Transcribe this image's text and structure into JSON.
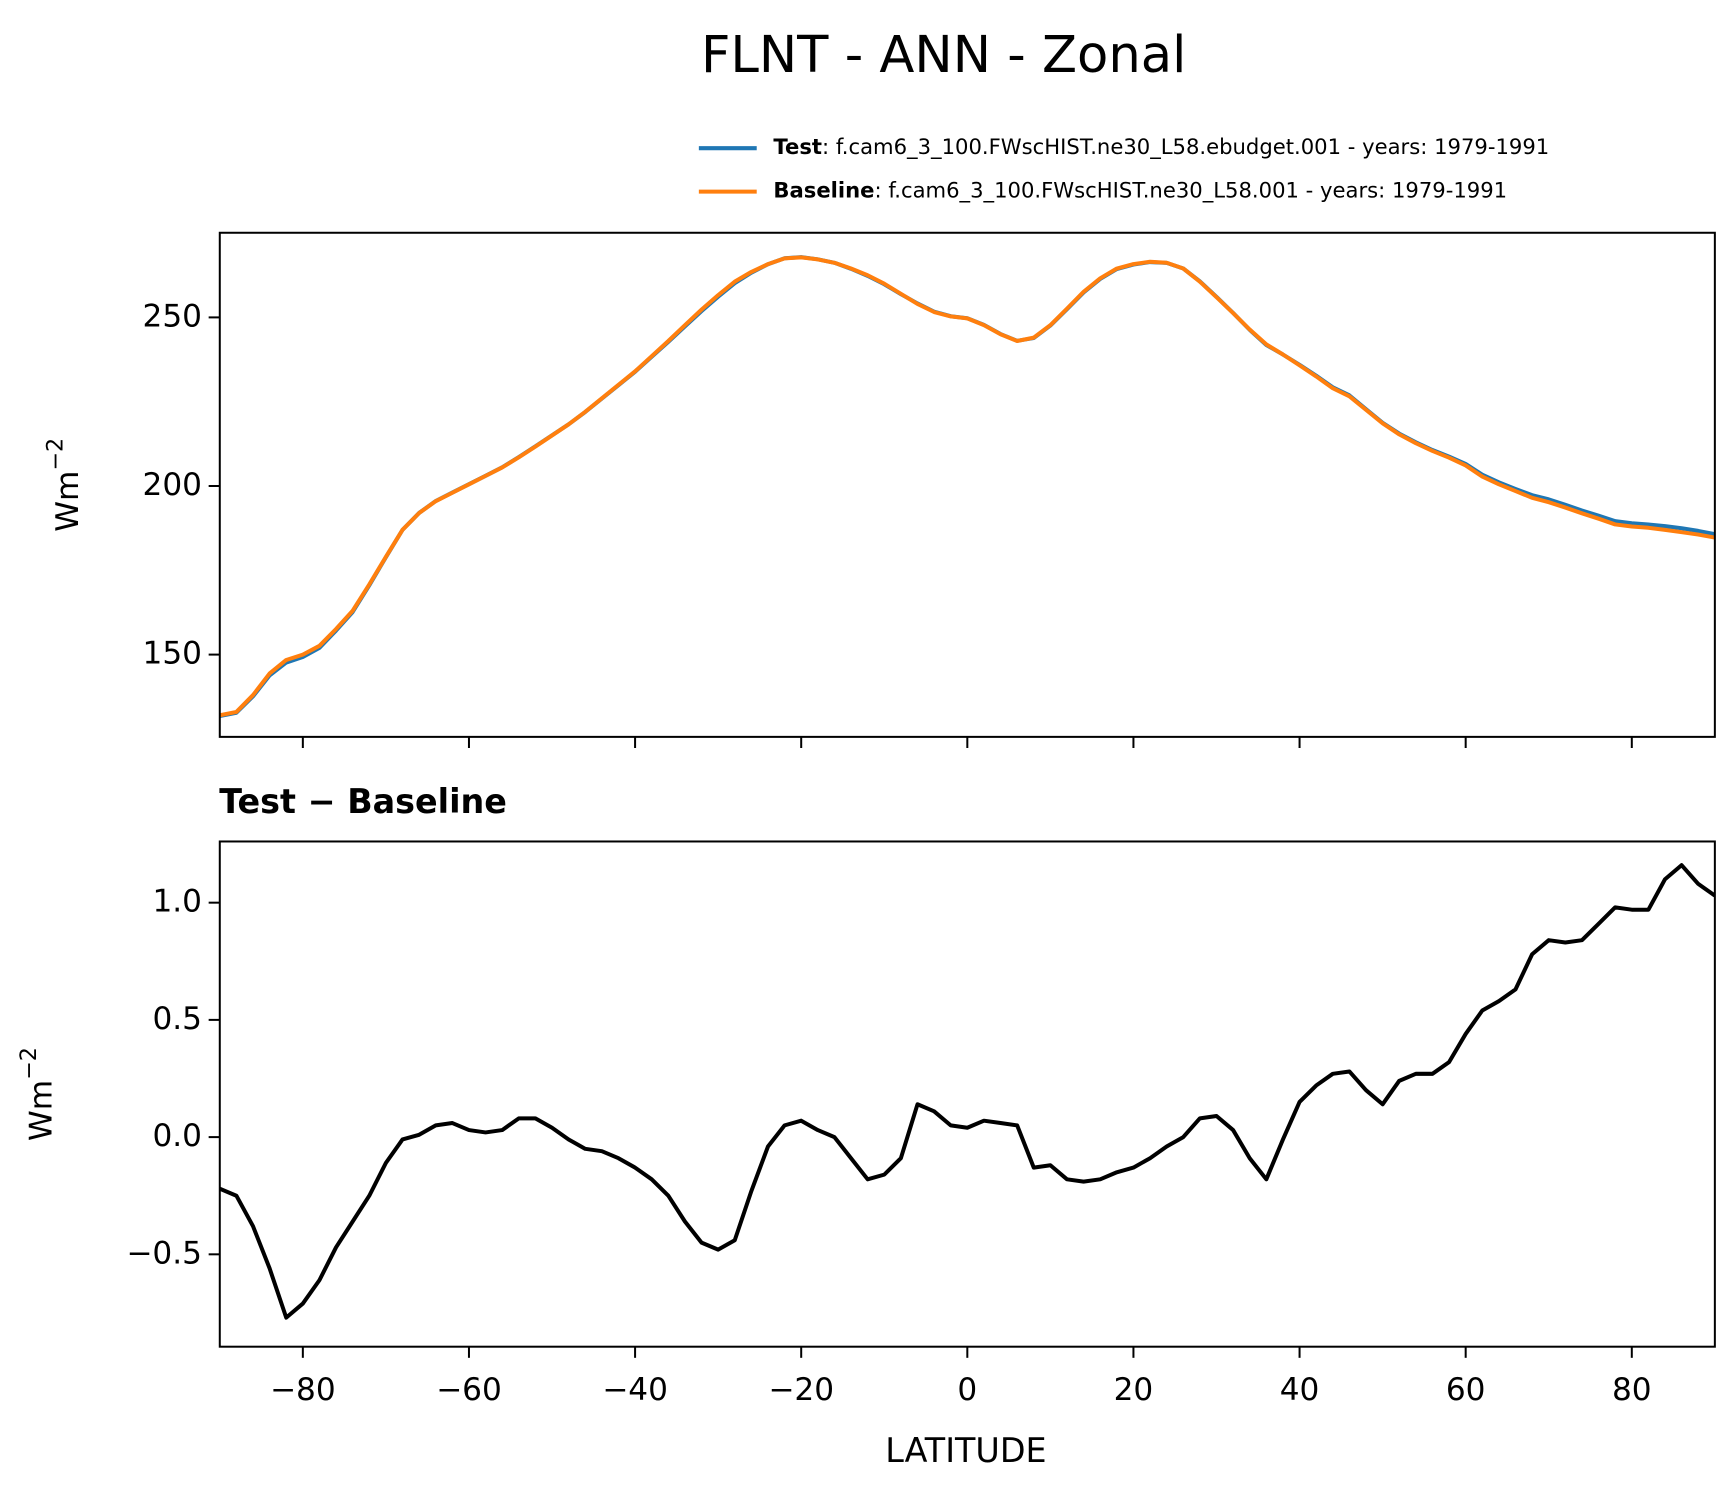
{
  "chart_data": [
    {
      "type": "line",
      "title": "FLNT - ANN - Zonal",
      "ylabel": {
        "base": "Wm",
        "sup": "−2"
      },
      "x": [
        -90,
        -88,
        -86,
        -84,
        -82,
        -80,
        -78,
        -76,
        -74,
        -72,
        -70,
        -68,
        -66,
        -64,
        -62,
        -60,
        -58,
        -56,
        -54,
        -52,
        -50,
        -48,
        -46,
        -44,
        -42,
        -40,
        -38,
        -36,
        -34,
        -32,
        -30,
        -28,
        -26,
        -24,
        -22,
        -20,
        -18,
        -16,
        -14,
        -12,
        -10,
        -8,
        -6,
        -4,
        -2,
        0,
        2,
        4,
        6,
        8,
        10,
        12,
        14,
        16,
        18,
        20,
        22,
        24,
        26,
        28,
        30,
        32,
        34,
        36,
        38,
        40,
        42,
        44,
        46,
        48,
        50,
        52,
        54,
        56,
        58,
        60,
        62,
        64,
        66,
        68,
        70,
        72,
        74,
        76,
        78,
        80,
        82,
        84,
        86,
        88,
        90
      ],
      "series": [
        {
          "name": "Test",
          "source": ": f.cam6_3_100.FWscHIST.ne30_L58.ebudget.001 - years: 1979-1991",
          "color": "#1f77b4",
          "values": [
            131.78,
            132.75,
            137.62,
            143.84,
            147.63,
            149.29,
            151.99,
            157.13,
            162.64,
            170.55,
            178.89,
            186.99,
            192.01,
            195.55,
            198.06,
            200.53,
            203.02,
            205.53,
            208.58,
            211.78,
            215.04,
            218.29,
            221.95,
            225.94,
            229.91,
            233.87,
            238.32,
            242.75,
            247.34,
            251.85,
            256.12,
            260.16,
            263.27,
            265.76,
            267.55,
            267.87,
            267.23,
            266.2,
            264.41,
            262.32,
            259.84,
            256.91,
            254.14,
            251.71,
            250.35,
            249.74,
            247.77,
            245.06,
            243.05,
            243.87,
            247.58,
            252.42,
            257.41,
            261.42,
            264.35,
            265.67,
            266.41,
            266.16,
            264.5,
            260.68,
            256.09,
            251.33,
            246.31,
            241.82,
            238.99,
            235.95,
            232.72,
            229.27,
            226.88,
            222.8,
            218.74,
            215.54,
            212.97,
            210.67,
            208.72,
            206.54,
            203.34,
            201.08,
            199.13,
            197.28,
            196.04,
            194.43,
            192.74,
            191.21,
            189.58,
            188.97,
            188.57,
            188.1,
            187.46,
            186.68,
            185.73
          ]
        },
        {
          "name": "Baseline",
          "source": ": f.cam6_3_100.FWscHIST.ne30_L58.001 - years: 1979-1991",
          "color": "#ff7f0e",
          "values": [
            132,
            133,
            138,
            144.4,
            148.4,
            150,
            152.6,
            157.6,
            163,
            170.8,
            179,
            187,
            192,
            195.5,
            198,
            200.5,
            203,
            205.5,
            208.5,
            211.7,
            215,
            218.3,
            222,
            226,
            230,
            234,
            238.5,
            243,
            247.7,
            252.3,
            256.6,
            260.6,
            263.5,
            265.8,
            267.5,
            267.8,
            267.2,
            266.2,
            264.5,
            262.5,
            260,
            257,
            254,
            251.6,
            250.3,
            249.7,
            247.7,
            245,
            243,
            244,
            247.7,
            252.6,
            257.6,
            261.6,
            264.5,
            265.8,
            266.5,
            266.2,
            264.5,
            260.6,
            256,
            251.3,
            246.4,
            242,
            239,
            235.8,
            232.5,
            229,
            226.6,
            222.6,
            218.6,
            215.3,
            212.7,
            210.4,
            208.4,
            206.1,
            202.8,
            200.5,
            198.5,
            196.5,
            195.2,
            193.6,
            191.9,
            190.3,
            188.6,
            188,
            187.6,
            187,
            186.3,
            185.6,
            184.7
          ]
        }
      ],
      "xlim": [
        -90,
        90
      ],
      "xticks": [
        -80,
        -60,
        -40,
        -20,
        0,
        20,
        40,
        60,
        80
      ],
      "ylim": [
        125.6,
        275.1
      ],
      "yticks": [
        150,
        200,
        250
      ]
    },
    {
      "type": "line",
      "subtitle": "Test − Baseline",
      "xlabel": "LATITUDE",
      "ylabel": {
        "base": "Wm",
        "sup": "−2"
      },
      "x": [
        -90,
        -88,
        -86,
        -84,
        -82,
        -80,
        -78,
        -76,
        -74,
        -72,
        -70,
        -68,
        -66,
        -64,
        -62,
        -60,
        -58,
        -56,
        -54,
        -52,
        -50,
        -48,
        -46,
        -44,
        -42,
        -40,
        -38,
        -36,
        -34,
        -32,
        -30,
        -28,
        -26,
        -24,
        -22,
        -20,
        -18,
        -16,
        -14,
        -12,
        -10,
        -8,
        -6,
        -4,
        -2,
        0,
        2,
        4,
        6,
        8,
        10,
        12,
        14,
        16,
        18,
        20,
        22,
        24,
        26,
        28,
        30,
        32,
        34,
        36,
        38,
        40,
        42,
        44,
        46,
        48,
        50,
        52,
        54,
        56,
        58,
        60,
        62,
        64,
        66,
        68,
        70,
        72,
        74,
        76,
        78,
        80,
        82,
        84,
        86,
        88,
        90
      ],
      "series": [
        {
          "color": "#000000",
          "values": [
            -0.22,
            -0.25,
            -0.38,
            -0.56,
            -0.77,
            -0.71,
            -0.61,
            -0.47,
            -0.36,
            -0.25,
            -0.11,
            -0.01,
            0.01,
            0.05,
            0.06,
            0.03,
            0.02,
            0.03,
            0.08,
            0.08,
            0.04,
            -0.01,
            -0.05,
            -0.06,
            -0.09,
            -0.13,
            -0.18,
            -0.25,
            -0.36,
            -0.45,
            -0.48,
            -0.44,
            -0.23,
            -0.04,
            0.05,
            0.07,
            0.03,
            0.0,
            -0.09,
            -0.18,
            -0.16,
            -0.09,
            0.14,
            0.11,
            0.05,
            0.04,
            0.07,
            0.06,
            0.05,
            -0.13,
            -0.12,
            -0.18,
            -0.19,
            -0.18,
            -0.15,
            -0.13,
            -0.09,
            -0.04,
            0.0,
            0.08,
            0.09,
            0.03,
            -0.09,
            -0.18,
            -0.01,
            0.15,
            0.22,
            0.27,
            0.28,
            0.2,
            0.14,
            0.24,
            0.27,
            0.27,
            0.32,
            0.44,
            0.54,
            0.58,
            0.63,
            0.78,
            0.84,
            0.83,
            0.84,
            0.91,
            0.98,
            0.97,
            0.97,
            1.1,
            1.16,
            1.08,
            1.03
          ]
        }
      ],
      "xlim": [
        -90,
        90
      ],
      "xticks": [
        {
          "value": -80,
          "label": "−80"
        },
        {
          "value": -60,
          "label": "−60"
        },
        {
          "value": -40,
          "label": "−40"
        },
        {
          "value": -20,
          "label": "−20"
        },
        0,
        20,
        40,
        60,
        80
      ],
      "ylim": [
        -0.894,
        1.261
      ],
      "yticks": [
        {
          "value": -0.5,
          "label": "−0.5"
        },
        {
          "value": 0,
          "label": "0.0"
        },
        0.5,
        {
          "value": 1,
          "label": "1.0"
        }
      ]
    }
  ]
}
